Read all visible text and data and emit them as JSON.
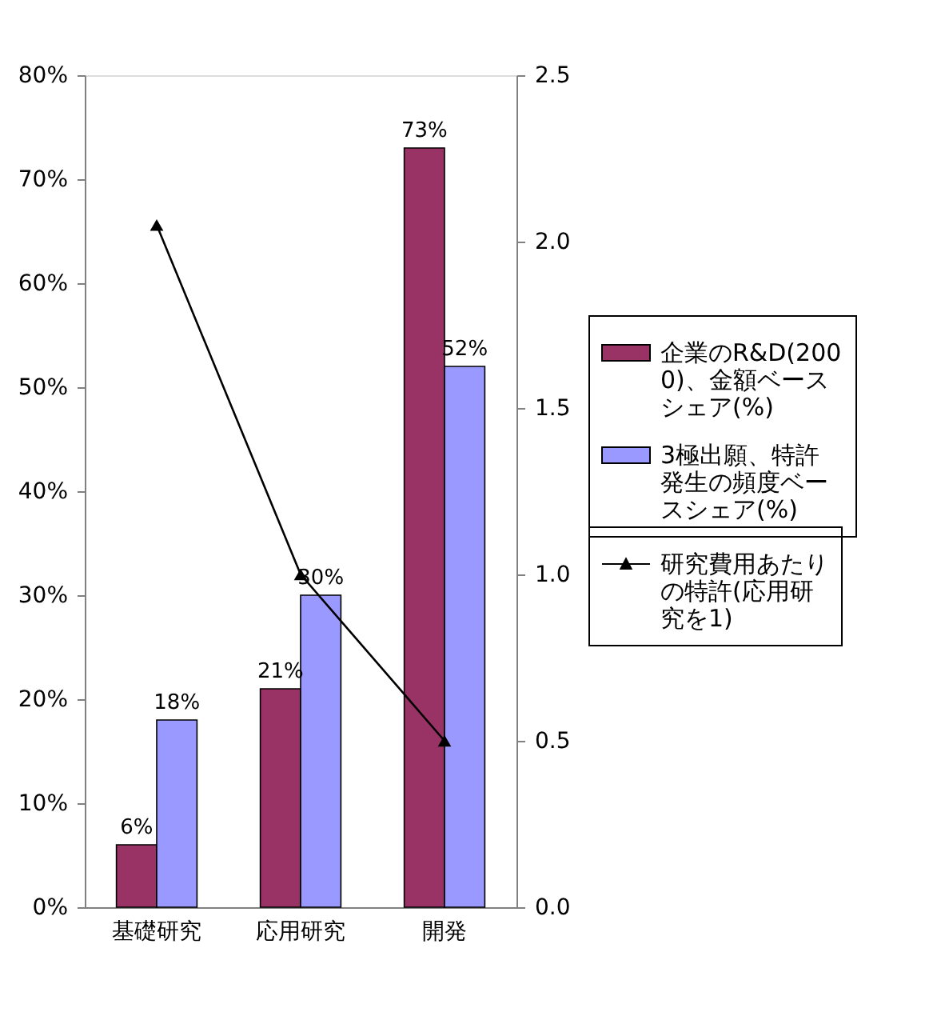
{
  "chart_data": {
    "type": "bar",
    "categories": [
      "基礎研究",
      "応用研究",
      "開発"
    ],
    "series": [
      {
        "name": "企業のR&D(2000)、金額ベースシェア(%)",
        "color": "#993366",
        "values": [
          6,
          21,
          73
        ],
        "value_labels": [
          "6%",
          "21%",
          "73%"
        ]
      },
      {
        "name": "3極出願、特許発生の頻度ベースシェア(%)",
        "color": "#9999ff",
        "values": [
          18,
          30,
          52
        ],
        "value_labels": [
          "18%",
          "30%",
          "52%"
        ]
      },
      {
        "name": "研究費用あたりの特許(応用研究を1)",
        "color": "#000000",
        "type": "line",
        "axis": "y2",
        "values": [
          2.05,
          1.0,
          0.5
        ]
      }
    ],
    "ylim": [
      0,
      80
    ],
    "yticks": [
      {
        "value": 0,
        "label": "0%"
      },
      {
        "value": 10,
        "label": "10%"
      },
      {
        "value": 20,
        "label": "20%"
      },
      {
        "value": 30,
        "label": "30%"
      },
      {
        "value": 40,
        "label": "40%"
      },
      {
        "value": 50,
        "label": "50%"
      },
      {
        "value": 60,
        "label": "60%"
      },
      {
        "value": 70,
        "label": "70%"
      },
      {
        "value": 80,
        "label": "80%"
      }
    ],
    "y2lim": [
      0,
      2.5
    ],
    "y2ticks": [
      {
        "value": 0,
        "label": "0.0"
      },
      {
        "value": 0.5,
        "label": "0.5"
      },
      {
        "value": 1,
        "label": "1.0"
      },
      {
        "value": 1.5,
        "label": "1.5"
      },
      {
        "value": 2,
        "label": "2.0"
      },
      {
        "value": 2.5,
        "label": "2.5"
      }
    ],
    "grid": false,
    "legend": "right",
    "marker": "triangle"
  }
}
